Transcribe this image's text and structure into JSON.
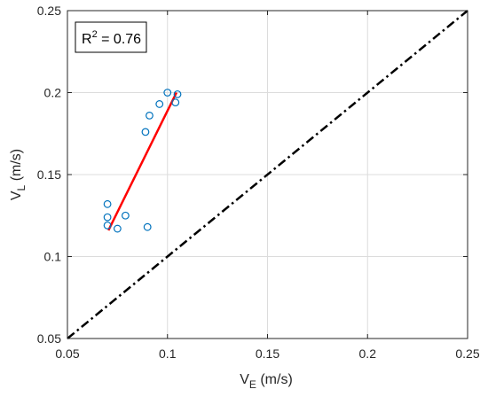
{
  "chart_data": {
    "type": "scatter",
    "xlabel": {
      "main": "V",
      "sub": "E",
      "unit": " (m/s)"
    },
    "ylabel": {
      "main": "V",
      "sub": "L",
      "unit": " (m/s)"
    },
    "xlim": [
      0.05,
      0.25
    ],
    "ylim": [
      0.05,
      0.25
    ],
    "xticks": [
      0.05,
      0.1,
      0.15,
      0.2,
      0.25
    ],
    "xtick_labels": [
      "0.05",
      "0.1",
      "0.15",
      "0.2",
      "0.25"
    ],
    "yticks": [
      0.05,
      0.1,
      0.15,
      0.2,
      0.25
    ],
    "ytick_labels": [
      "0.05",
      "0.1",
      "0.15",
      "0.2",
      "0.25"
    ],
    "grid": true,
    "annotation": {
      "prefix": "R",
      "sup": "2",
      "suffix": " = 0.76"
    },
    "series": [
      {
        "kind": "scatter",
        "marker": "open-circle",
        "color": "#0072BD",
        "points": [
          [
            0.07,
            0.132
          ],
          [
            0.07,
            0.124
          ],
          [
            0.07,
            0.119
          ],
          [
            0.075,
            0.117
          ],
          [
            0.079,
            0.125
          ],
          [
            0.09,
            0.118
          ],
          [
            0.089,
            0.176
          ],
          [
            0.091,
            0.186
          ],
          [
            0.096,
            0.193
          ],
          [
            0.1,
            0.2
          ],
          [
            0.104,
            0.194
          ],
          [
            0.105,
            0.199
          ]
        ]
      },
      {
        "kind": "line",
        "style": "solid",
        "color": "#FF0000",
        "points": [
          [
            0.0705,
            0.116
          ],
          [
            0.1045,
            0.2
          ]
        ]
      },
      {
        "kind": "line",
        "style": "dash-dot",
        "color": "#000000",
        "points": [
          [
            0.05,
            0.05
          ],
          [
            0.25,
            0.25
          ]
        ]
      }
    ]
  }
}
